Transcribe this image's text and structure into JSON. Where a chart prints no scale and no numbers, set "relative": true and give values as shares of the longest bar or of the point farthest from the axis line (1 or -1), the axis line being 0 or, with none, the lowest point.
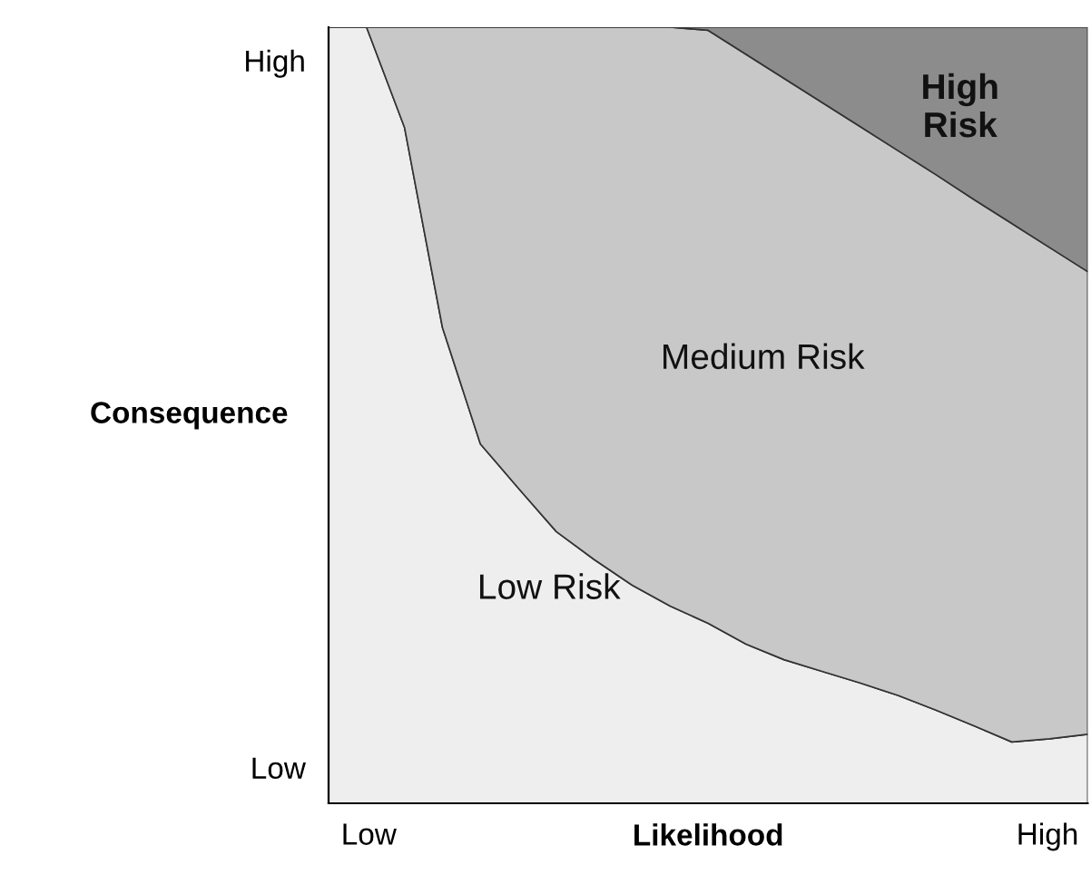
{
  "chart_data": {
    "type": "area",
    "stacked": true,
    "relative": true,
    "xlabel": "Likelihood",
    "ylabel": "Consequence",
    "categories": [
      null,
      null,
      null,
      null,
      null,
      null,
      null,
      null,
      null,
      null,
      null,
      null,
      null,
      null,
      null,
      null,
      null,
      null,
      null,
      null,
      null
    ],
    "series": [
      {
        "name": "Low Risk",
        "color": "#eeeeee",
        "values": [
          1,
          1,
          0.871,
          0.613,
          0.463,
          0.406,
          0.35,
          0.314,
          0.281,
          0.254,
          0.232,
          0.205,
          0.185,
          0.17,
          0.155,
          0.139,
          0.12,
          0.1,
          0.079,
          0.083,
          0.089
        ]
      },
      {
        "name": "Medium Risk",
        "color": "#c8c8c8",
        "values": [
          0,
          0,
          0.129,
          0.387,
          0.537,
          0.594,
          0.65,
          0.686,
          0.719,
          0.746,
          0.764,
          0.76,
          0.749,
          0.733,
          0.717,
          0.702,
          0.69,
          0.678,
          0.668,
          0.633,
          0.596
        ]
      },
      {
        "name": "High\nRisk",
        "color": "#8c8c8c",
        "values": [
          0,
          0,
          0,
          0,
          0,
          0,
          0,
          0,
          0,
          0,
          0.004,
          0.035,
          0.066,
          0.097,
          0.128,
          0.159,
          0.19,
          0.222,
          0.253,
          0.284,
          0.315
        ]
      }
    ],
    "annotations": [
      "Low",
      "High",
      "Low",
      "High"
    ],
    "legend": false
  }
}
